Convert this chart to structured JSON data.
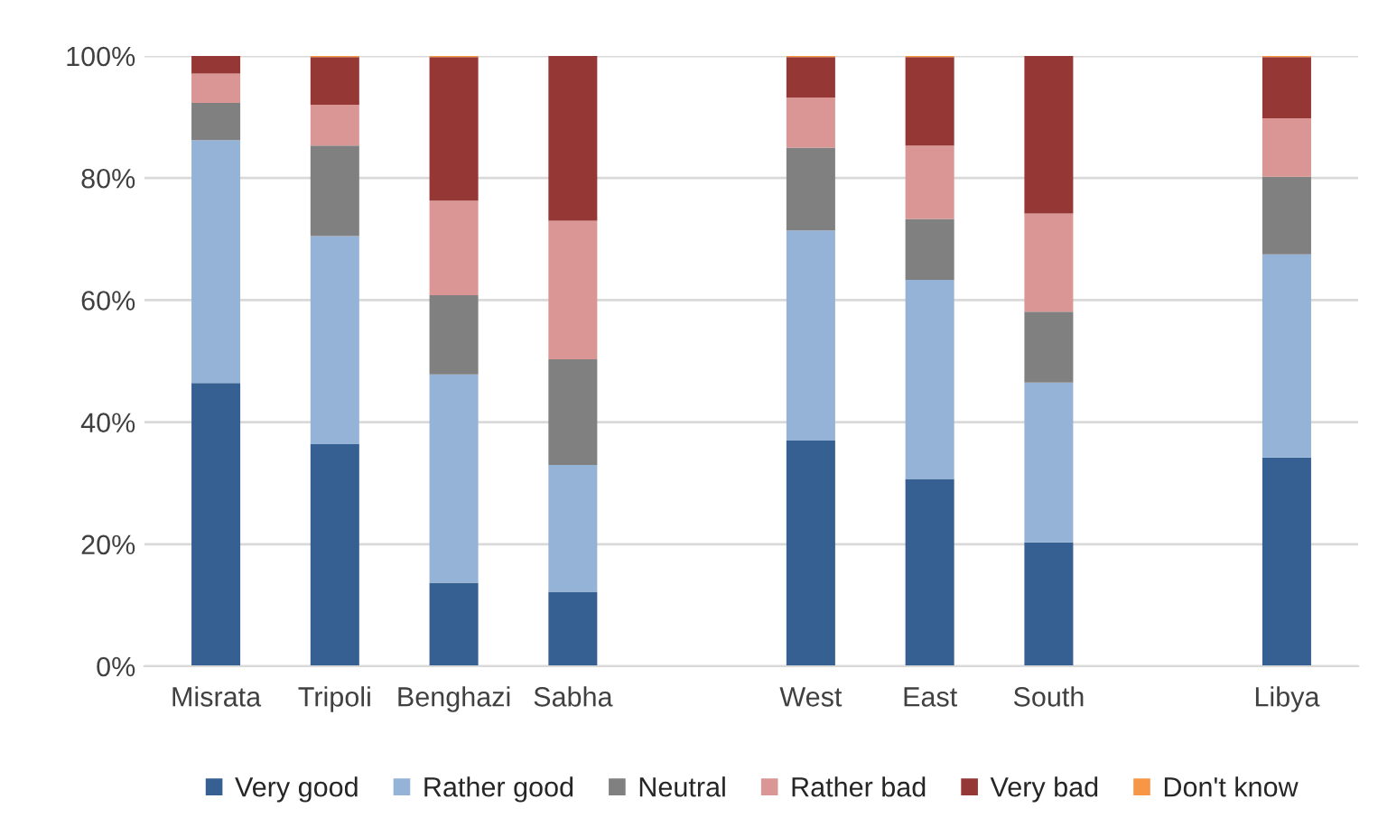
{
  "chart_data": {
    "type": "bar",
    "stacked": true,
    "categories": [
      "Misrata",
      "Tripoli",
      "Benghazi",
      "Sabha",
      null,
      "West",
      "East",
      "South",
      null,
      "Libya"
    ],
    "series": [
      {
        "name": "Very good",
        "color": "#376092",
        "values": [
          46.4,
          36.4,
          13.7,
          12.2,
          null,
          37.0,
          30.7,
          20.3,
          null,
          34.2
        ]
      },
      {
        "name": "Rather good",
        "color": "#95b3d7",
        "values": [
          39.8,
          34.1,
          34.1,
          20.8,
          null,
          34.4,
          32.6,
          26.2,
          null,
          33.3
        ]
      },
      {
        "name": "Neutral",
        "color": "#808080",
        "values": [
          6.1,
          14.8,
          13.0,
          17.3,
          null,
          13.6,
          10.0,
          11.6,
          null,
          12.7
        ]
      },
      {
        "name": "Rather bad",
        "color": "#da9694",
        "values": [
          4.8,
          6.7,
          15.5,
          22.7,
          null,
          8.2,
          12.0,
          16.1,
          null,
          9.6
        ]
      },
      {
        "name": "Very bad",
        "color": "#953735",
        "values": [
          2.9,
          7.8,
          23.5,
          27.0,
          null,
          6.6,
          14.5,
          25.8,
          null,
          10.0
        ]
      },
      {
        "name": "Don't know",
        "color": "#f79646",
        "values": [
          0,
          0.2,
          0.2,
          0,
          null,
          0.2,
          0.2,
          0,
          null,
          0.2
        ]
      }
    ],
    "ylim": [
      0,
      100
    ],
    "yticks": [
      {
        "value": 0,
        "label": "0%"
      },
      {
        "value": 20,
        "label": "20%"
      },
      {
        "value": 40,
        "label": "40%"
      },
      {
        "value": 60,
        "label": "60%"
      },
      {
        "value": 80,
        "label": "80%"
      },
      {
        "value": 100,
        "label": "100%"
      }
    ],
    "grid": "y",
    "legend": "bottom"
  }
}
